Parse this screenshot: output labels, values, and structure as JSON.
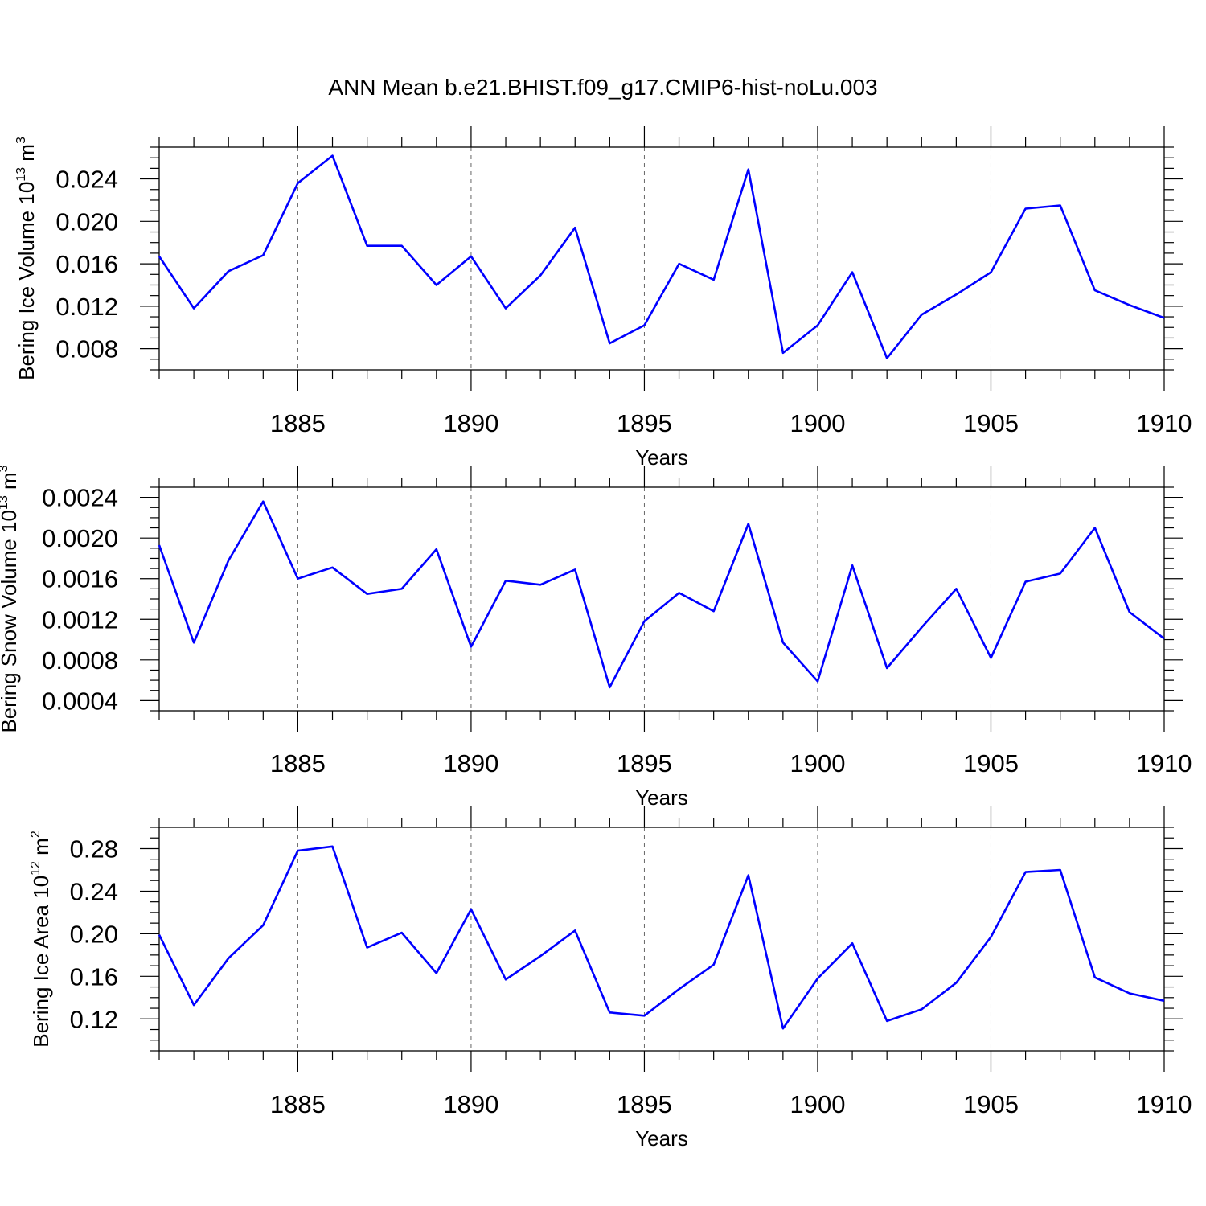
{
  "title": "ANN Mean b.e21.BHIST.f09_g17.CMIP6-hist-noLu.003",
  "chart_data": [
    {
      "type": "line",
      "xlabel": "Years",
      "ylabel_main": "Bering Ice Volume 10",
      "ylabel_exp": "13",
      "ylabel_unit": "m",
      "ylabel_unit_exp": "3",
      "xlim": [
        1881,
        1910
      ],
      "ylim": [
        0.006,
        0.027
      ],
      "xticks": [
        "1885",
        "1890",
        "1895",
        "1900",
        "1905",
        "1910"
      ],
      "yticks": [
        "0.008",
        "0.012",
        "0.016",
        "0.020",
        "0.024"
      ],
      "series": [
        {
          "name": "Bering Ice Volume",
          "color": "#0000ff",
          "x": [
            1881,
            1882,
            1883,
            1884,
            1885,
            1886,
            1887,
            1888,
            1889,
            1890,
            1891,
            1892,
            1893,
            1894,
            1895,
            1896,
            1897,
            1898,
            1899,
            1900,
            1901,
            1902,
            1903,
            1904,
            1905,
            1906,
            1907,
            1908,
            1909,
            1910
          ],
          "values": [
            0.0167,
            0.0118,
            0.0153,
            0.0168,
            0.0236,
            0.0262,
            0.0177,
            0.0177,
            0.014,
            0.0167,
            0.0118,
            0.0149,
            0.0194,
            0.0085,
            0.0102,
            0.016,
            0.0145,
            0.0249,
            0.0076,
            0.0102,
            0.0152,
            0.0071,
            0.0112,
            0.0131,
            0.0152,
            0.0212,
            0.0215,
            0.0135,
            0.0121,
            0.0109
          ]
        }
      ]
    },
    {
      "type": "line",
      "xlabel": "Years",
      "ylabel_main": "Bering Snow Volume 10",
      "ylabel_exp": "13",
      "ylabel_unit": "m",
      "ylabel_unit_exp": "3",
      "xlim": [
        1881,
        1910
      ],
      "ylim": [
        0.0003,
        0.0025
      ],
      "xticks": [
        "1885",
        "1890",
        "1895",
        "1900",
        "1905",
        "1910"
      ],
      "yticks": [
        "0.0004",
        "0.0008",
        "0.0012",
        "0.0016",
        "0.0020",
        "0.0024"
      ],
      "series": [
        {
          "name": "Bering Snow Volume",
          "color": "#0000ff",
          "x": [
            1881,
            1882,
            1883,
            1884,
            1885,
            1886,
            1887,
            1888,
            1889,
            1890,
            1891,
            1892,
            1893,
            1894,
            1895,
            1896,
            1897,
            1898,
            1899,
            1900,
            1901,
            1902,
            1903,
            1904,
            1905,
            1906,
            1907,
            1908,
            1909,
            1910
          ],
          "values": [
            0.00193,
            0.00097,
            0.00178,
            0.00236,
            0.0016,
            0.00171,
            0.00145,
            0.0015,
            0.00189,
            0.00093,
            0.00158,
            0.00154,
            0.00169,
            0.00053,
            0.00118,
            0.00146,
            0.00128,
            0.00214,
            0.00097,
            0.00059,
            0.00173,
            0.00072,
            0.00112,
            0.0015,
            0.00082,
            0.00157,
            0.00165,
            0.0021,
            0.00127,
            0.00101
          ]
        }
      ]
    },
    {
      "type": "line",
      "xlabel": "Years",
      "ylabel_main": "Bering Ice Area 10",
      "ylabel_exp": "12",
      "ylabel_unit": "m",
      "ylabel_unit_exp": "2",
      "xlim": [
        1881,
        1910
      ],
      "ylim": [
        0.09,
        0.3
      ],
      "xticks": [
        "1885",
        "1890",
        "1895",
        "1900",
        "1905",
        "1910"
      ],
      "yticks": [
        "0.12",
        "0.16",
        "0.20",
        "0.24",
        "0.28"
      ],
      "series": [
        {
          "name": "Bering Ice Area",
          "color": "#0000ff",
          "x": [
            1881,
            1882,
            1883,
            1884,
            1885,
            1886,
            1887,
            1888,
            1889,
            1890,
            1891,
            1892,
            1893,
            1894,
            1895,
            1896,
            1897,
            1898,
            1899,
            1900,
            1901,
            1902,
            1903,
            1904,
            1905,
            1906,
            1907,
            1908,
            1909,
            1910
          ],
          "values": [
            0.199,
            0.133,
            0.177,
            0.208,
            0.278,
            0.282,
            0.187,
            0.201,
            0.163,
            0.223,
            0.157,
            0.179,
            0.203,
            0.126,
            0.123,
            0.148,
            0.171,
            0.255,
            0.111,
            0.158,
            0.191,
            0.118,
            0.129,
            0.154,
            0.197,
            0.258,
            0.26,
            0.159,
            0.144,
            0.137
          ]
        }
      ]
    }
  ]
}
